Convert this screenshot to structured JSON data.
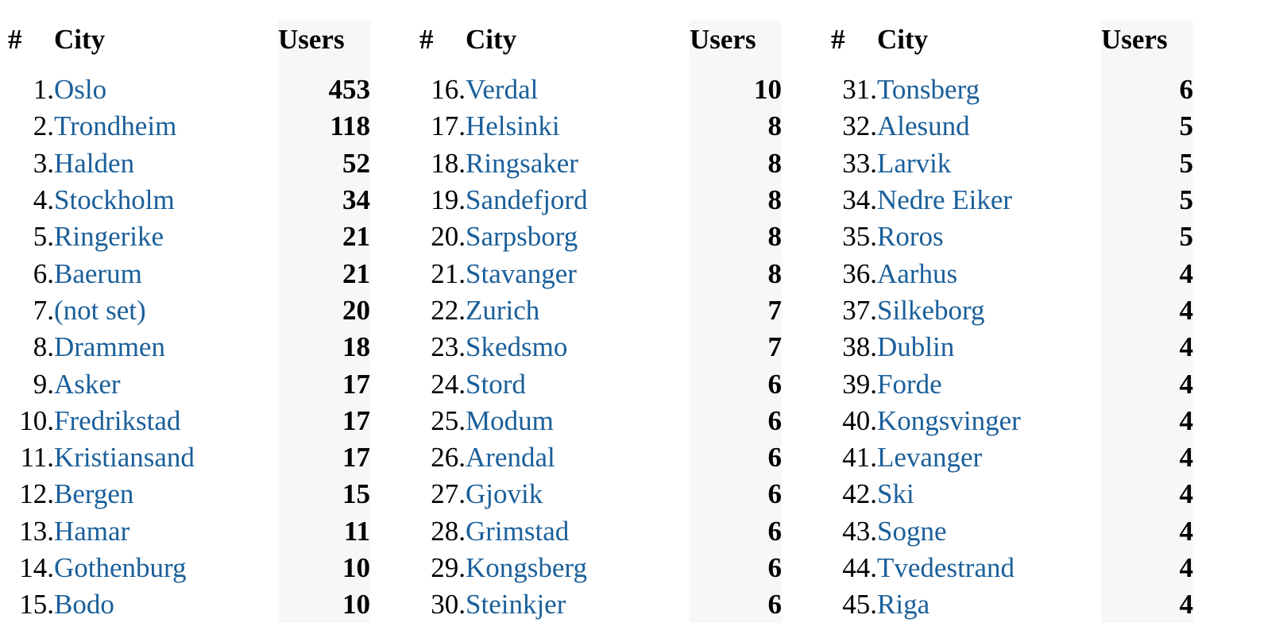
{
  "headers": {
    "rank": "#",
    "city": "City",
    "users": "Users"
  },
  "link_color": "#1a5f9a",
  "tables": [
    {
      "rows": [
        {
          "rank": "1.",
          "city": "Oslo",
          "users": "453"
        },
        {
          "rank": "2.",
          "city": "Trondheim",
          "users": "118"
        },
        {
          "rank": "3.",
          "city": "Halden",
          "users": "52"
        },
        {
          "rank": "4.",
          "city": "Stockholm",
          "users": "34"
        },
        {
          "rank": "5.",
          "city": "Ringerike",
          "users": "21"
        },
        {
          "rank": "6.",
          "city": "Baerum",
          "users": "21"
        },
        {
          "rank": "7.",
          "city": "(not set)",
          "users": "20"
        },
        {
          "rank": "8.",
          "city": "Drammen",
          "users": "18"
        },
        {
          "rank": "9.",
          "city": "Asker",
          "users": "17"
        },
        {
          "rank": "10.",
          "city": "Fredrikstad",
          "users": "17"
        },
        {
          "rank": "11.",
          "city": "Kristiansand",
          "users": "17"
        },
        {
          "rank": "12.",
          "city": "Bergen",
          "users": "15"
        },
        {
          "rank": "13.",
          "city": "Hamar",
          "users": "11"
        },
        {
          "rank": "14.",
          "city": "Gothenburg",
          "users": "10"
        },
        {
          "rank": "15.",
          "city": "Bodo",
          "users": "10"
        }
      ]
    },
    {
      "rows": [
        {
          "rank": "16.",
          "city": "Verdal",
          "users": "10"
        },
        {
          "rank": "17.",
          "city": "Helsinki",
          "users": "8"
        },
        {
          "rank": "18.",
          "city": "Ringsaker",
          "users": "8"
        },
        {
          "rank": "19.",
          "city": "Sandefjord",
          "users": "8"
        },
        {
          "rank": "20.",
          "city": "Sarpsborg",
          "users": "8"
        },
        {
          "rank": "21.",
          "city": "Stavanger",
          "users": "8"
        },
        {
          "rank": "22.",
          "city": "Zurich",
          "users": "7"
        },
        {
          "rank": "23.",
          "city": "Skedsmo",
          "users": "7"
        },
        {
          "rank": "24.",
          "city": "Stord",
          "users": "6"
        },
        {
          "rank": "25.",
          "city": "Modum",
          "users": "6"
        },
        {
          "rank": "26.",
          "city": "Arendal",
          "users": "6"
        },
        {
          "rank": "27.",
          "city": "Gjovik",
          "users": "6"
        },
        {
          "rank": "28.",
          "city": "Grimstad",
          "users": "6"
        },
        {
          "rank": "29.",
          "city": "Kongsberg",
          "users": "6"
        },
        {
          "rank": "30.",
          "city": "Steinkjer",
          "users": "6"
        }
      ]
    },
    {
      "rows": [
        {
          "rank": "31.",
          "city": "Tonsberg",
          "users": "6"
        },
        {
          "rank": "32.",
          "city": "Alesund",
          "users": "5"
        },
        {
          "rank": "33.",
          "city": "Larvik",
          "users": "5"
        },
        {
          "rank": "34.",
          "city": "Nedre Eiker",
          "users": "5"
        },
        {
          "rank": "35.",
          "city": "Roros",
          "users": "5"
        },
        {
          "rank": "36.",
          "city": "Aarhus",
          "users": "4"
        },
        {
          "rank": "37.",
          "city": "Silkeborg",
          "users": "4"
        },
        {
          "rank": "38.",
          "city": "Dublin",
          "users": "4"
        },
        {
          "rank": "39.",
          "city": "Forde",
          "users": "4"
        },
        {
          "rank": "40.",
          "city": "Kongsvinger",
          "users": "4"
        },
        {
          "rank": "41.",
          "city": "Levanger",
          "users": "4"
        },
        {
          "rank": "42.",
          "city": "Ski",
          "users": "4"
        },
        {
          "rank": "43.",
          "city": "Sogne",
          "users": "4"
        },
        {
          "rank": "44.",
          "city": "Tvedestrand",
          "users": "4"
        },
        {
          "rank": "45.",
          "city": "Riga",
          "users": "4"
        }
      ]
    }
  ]
}
